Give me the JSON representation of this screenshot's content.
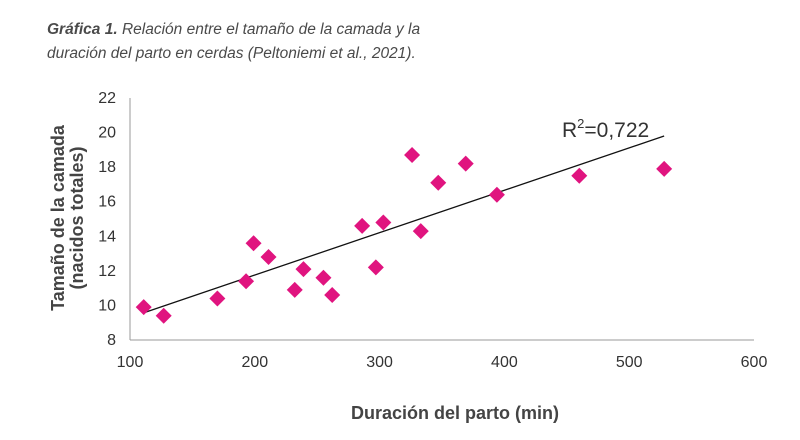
{
  "caption": {
    "lead": "Gráfica 1.",
    "line1": "Relación entre el tamaño de la camada y la",
    "line2": "duración del parto en cerdas (Peltoniemi et al., 2021)."
  },
  "chart_data": {
    "type": "scatter",
    "xlabel": "Duración del parto (min)",
    "ylabel": [
      "Tamaño de la camada",
      "(nacidos totales)"
    ],
    "xlim": [
      100,
      600
    ],
    "ylim": [
      8,
      22
    ],
    "xticks": [
      100,
      200,
      300,
      400,
      500,
      600
    ],
    "yticks": [
      8,
      10,
      12,
      14,
      16,
      18,
      20,
      22
    ],
    "grid": false,
    "marker": "diamond",
    "marker_color": "#e0147f",
    "points": [
      {
        "x": 111,
        "y": 9.9
      },
      {
        "x": 127,
        "y": 9.4
      },
      {
        "x": 170,
        "y": 10.4
      },
      {
        "x": 193,
        "y": 11.4
      },
      {
        "x": 199,
        "y": 13.6
      },
      {
        "x": 211,
        "y": 12.8
      },
      {
        "x": 232,
        "y": 10.9
      },
      {
        "x": 239,
        "y": 12.1
      },
      {
        "x": 255,
        "y": 11.6
      },
      {
        "x": 262,
        "y": 10.6
      },
      {
        "x": 286,
        "y": 14.6
      },
      {
        "x": 297,
        "y": 12.2
      },
      {
        "x": 303,
        "y": 14.8
      },
      {
        "x": 326,
        "y": 18.7
      },
      {
        "x": 333,
        "y": 14.3
      },
      {
        "x": 347,
        "y": 17.1
      },
      {
        "x": 369,
        "y": 18.2
      },
      {
        "x": 394,
        "y": 16.4
      },
      {
        "x": 460,
        "y": 17.5
      },
      {
        "x": 528,
        "y": 17.9
      }
    ],
    "trendline": {
      "type": "linear",
      "x": [
        112,
        528
      ],
      "y": [
        9.6,
        19.8
      ],
      "label_prefix": "R",
      "label_sup": "2",
      "label_value": "=0,722"
    }
  }
}
